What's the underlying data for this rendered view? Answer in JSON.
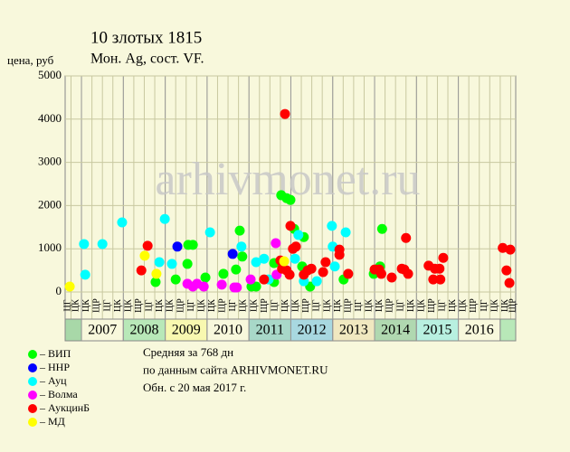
{
  "chart_data": {
    "type": "scatter",
    "title": "10 злотых 1815",
    "subtitle": "Мон. Ag, сост. VF.",
    "y_label": "цена, руб",
    "watermark": "arhivmonet.ru",
    "xlim": [
      2006.61,
      2017.37
    ],
    "ylim": [
      0,
      5000
    ],
    "xticks": [
      2007,
      2008,
      2009,
      2010,
      2011,
      2012,
      2013,
      2014,
      2015,
      2016
    ],
    "yticks": [
      0,
      1000,
      2000,
      3000,
      4000,
      5000
    ],
    "year_colors": [
      "#f8f8dc",
      "#b8e8b8",
      "#f8f8b0",
      "#f8f8dc",
      "#a8d8c8",
      "#a8d8e0",
      "#f0e8c0",
      "#b0d8b0",
      "#b8f0e0",
      "#f8f8dc"
    ],
    "period_labels": [
      "ЦК",
      "ЩР",
      "ЦГ",
      "ЦК"
    ],
    "grid": true,
    "series": [
      {
        "name": "– ВИП",
        "color": "#00ff00",
        "x": [
          2008.77,
          2009.25,
          2009.53,
          2009.55,
          2009.66,
          2009.96,
          2010.39,
          2010.69,
          2010.78,
          2010.84,
          2011.06,
          2011.17,
          2011.6,
          2011.6,
          2011.77,
          2011.9,
          2011.99,
          2012.08,
          2012.31,
          2012.27,
          2012.46,
          2013.26,
          2013.98,
          2014.13,
          2014.18
        ],
        "values": [
          230,
          290,
          650,
          1090,
          1090,
          335,
          420,
          520,
          1420,
          820,
          125,
          125,
          670,
          230,
          2240,
          2170,
          2130,
          1460,
          1270,
          590,
          125,
          290,
          420,
          590,
          1460
        ]
      },
      {
        "name": "– ННР",
        "color": "#0000ff",
        "x": [
          2009.29,
          2010.61
        ],
        "values": [
          1050,
          880
        ]
      },
      {
        "name": "– Ауц",
        "color": "#00ffff",
        "x": [
          2007.06,
          2007.09,
          2007.5,
          2007.97,
          2008.86,
          2008.99,
          2009.16,
          2010.07,
          2010.82,
          2011.17,
          2011.36,
          2011.47,
          2012.1,
          2012.18,
          2012.31,
          2012.62,
          2012.98,
          2013.0,
          2013.05,
          2013.31
        ],
        "values": [
          1110,
          400,
          1110,
          1610,
          690,
          1690,
          650,
          1380,
          1050,
          690,
          770,
          290,
          770,
          1320,
          250,
          250,
          1530,
          1050,
          590,
          1380
        ]
      },
      {
        "name": "– Волма",
        "color": "#ff00ff",
        "x": [
          2009.53,
          2009.66,
          2009.76,
          2009.92,
          2010.35,
          2010.65,
          2010.71,
          2011.04,
          2011.64,
          2011.66
        ],
        "values": [
          190,
          125,
          190,
          125,
          170,
          105,
          105,
          290,
          1130,
          400
        ]
      },
      {
        "name": "– АукцинБ",
        "color": "#ff0000",
        "x": [
          2008.43,
          2008.58,
          2011.36,
          2011.75,
          2011.86,
          2011.79,
          2011.9,
          2011.97,
          2011.99,
          2012.05,
          2012.12,
          2012.31,
          2012.4,
          2012.49,
          2012.77,
          2012.83,
          2013.16,
          2013.16,
          2013.37,
          2014.0,
          2014.11,
          2014.16,
          2014.41,
          2014.65,
          2014.71,
          2014.75,
          2014.8,
          2015.29,
          2015.4,
          2015.44,
          2015.55,
          2015.57,
          2015.64,
          2017.06,
          2017.24,
          2017.15,
          2017.22
        ],
        "values": [
          500,
          1070,
          290,
          730,
          4120,
          540,
          500,
          400,
          1530,
          1000,
          1050,
          400,
          500,
          540,
          460,
          690,
          980,
          860,
          420,
          520,
          520,
          420,
          335,
          540,
          520,
          1250,
          420,
          610,
          290,
          540,
          540,
          290,
          790,
          1020,
          980,
          500,
          210
        ]
      },
      {
        "name": "– МД",
        "color": "#ffff00",
        "x": [
          2006.72,
          2008.51,
          2008.79,
          2011.84
        ],
        "values": [
          125,
          840,
          420,
          710
        ]
      }
    ],
    "notes": [
      "Средняя за 768 дн",
      "по данным сайта ARHIVMONET.RU",
      "Обн. с 20 мая 2017 г."
    ]
  }
}
